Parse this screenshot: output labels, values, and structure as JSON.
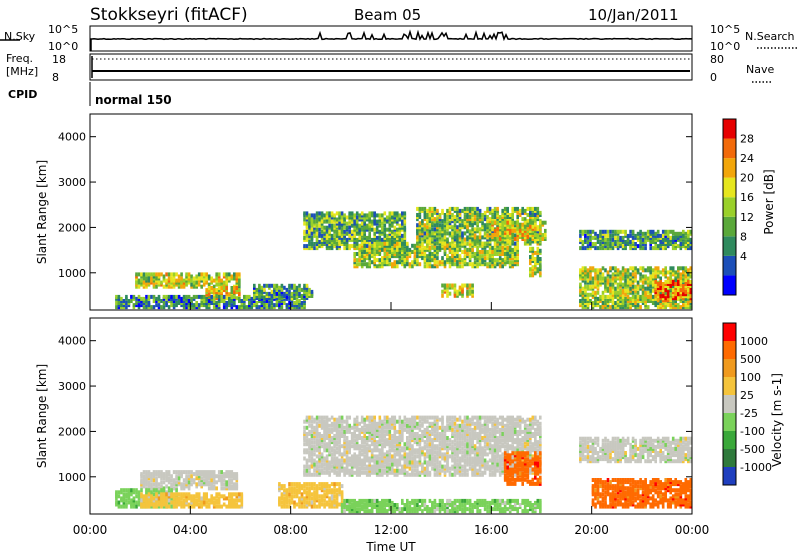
{
  "header": {
    "title": "Stokkseyri (fitACF)",
    "beam": "Beam 05",
    "date": "10/Jan/2011"
  },
  "summary_panels": {
    "nsky_label": "N.Sky",
    "nsearch_label": "N.Search",
    "freq_label_1": "Freq.",
    "freq_label_2": "[MHz]",
    "nave_label": "Nave",
    "cpid_label": "CPID",
    "cpid_value": "normal 150",
    "noise_ticks_left": [
      "10^5",
      "10^0"
    ],
    "noise_ticks_right": [
      "10^5",
      "10^0"
    ],
    "freq_ticks": [
      "18",
      "8"
    ],
    "nave_ticks": [
      "80",
      "0"
    ]
  },
  "chart_data": [
    {
      "type": "heatmap",
      "name": "power-panel",
      "ylabel": "Slant Range [km]",
      "xlabel": "Time UT",
      "xlim": [
        0,
        24
      ],
      "ylim": [
        180,
        4500
      ],
      "x_ticks": [
        "00:00",
        "04:00",
        "08:00",
        "12:00",
        "16:00",
        "20:00",
        "00:00"
      ],
      "y_ticks": [
        1000,
        2000,
        3000,
        4000
      ],
      "colorbar": {
        "label": "Power [dB]",
        "ticks": [
          "28",
          "24",
          "20",
          "16",
          "12",
          "8",
          "4"
        ],
        "colors": [
          "#0000ff",
          "#1c4fb8",
          "#2f8a5e",
          "#5aa83a",
          "#9ad02a",
          "#e6e61e",
          "#f2a60a",
          "#f26a0a",
          "#e60000"
        ],
        "range": [
          0,
          32
        ]
      },
      "regions": [
        {
          "t0": 1.8,
          "t1": 5.9,
          "r0": 650,
          "r1": 950,
          "level": 0.55
        },
        {
          "t0": 4.6,
          "t1": 5.9,
          "r0": 350,
          "r1": 650,
          "level": 0.65
        },
        {
          "t0": 1.0,
          "t1": 8.5,
          "r0": 200,
          "r1": 450,
          "level": 0.3
        },
        {
          "t0": 6.5,
          "t1": 8.8,
          "r0": 400,
          "r1": 700,
          "level": 0.35
        },
        {
          "t0": 8.5,
          "t1": 12.5,
          "r0": 1500,
          "r1": 2300,
          "level": 0.4
        },
        {
          "t0": 10.5,
          "t1": 17.0,
          "r0": 1100,
          "r1": 1600,
          "level": 0.5
        },
        {
          "t0": 13.0,
          "t1": 18.0,
          "r0": 1600,
          "r1": 2400,
          "level": 0.45
        },
        {
          "t0": 16.0,
          "t1": 18.2,
          "r0": 1700,
          "r1": 2100,
          "level": 0.6
        },
        {
          "t0": 14.0,
          "t1": 15.2,
          "r0": 450,
          "r1": 700,
          "level": 0.6
        },
        {
          "t0": 17.5,
          "t1": 18.0,
          "r0": 900,
          "r1": 1500,
          "level": 0.5
        },
        {
          "t0": 19.5,
          "t1": 24.0,
          "r0": 1500,
          "r1": 1900,
          "level": 0.35
        },
        {
          "t0": 19.5,
          "t1": 24.0,
          "r0": 200,
          "r1": 1100,
          "level": 0.5
        },
        {
          "t0": 22.5,
          "t1": 24.0,
          "r0": 350,
          "r1": 800,
          "level": 0.8
        }
      ]
    },
    {
      "type": "heatmap",
      "name": "velocity-panel",
      "ylabel": "Slant Range [km]",
      "xlabel": "Time UT",
      "xlim": [
        0,
        24
      ],
      "ylim": [
        180,
        4500
      ],
      "x_ticks": [
        "00:00",
        "04:00",
        "08:00",
        "12:00",
        "16:00",
        "20:00",
        "00:00"
      ],
      "y_ticks": [
        1000,
        2000,
        3000,
        4000
      ],
      "colorbar": {
        "label": "Velocity [m s-1]",
        "ticks": [
          "1000",
          "500",
          "100",
          "25",
          "-25",
          "-100",
          "-500",
          "-1000"
        ],
        "colors": [
          "#1f3fbf",
          "#2f7a3c",
          "#3aa83a",
          "#7ad25a",
          "#c8c8c0",
          "#f5c43c",
          "#f09a1e",
          "#ff6a00",
          "#ff0000"
        ]
      },
      "regions": [
        {
          "t0": 2.0,
          "t1": 5.8,
          "r0": 700,
          "r1": 1100,
          "cls": 4
        },
        {
          "t0": 1.0,
          "t1": 3.5,
          "r0": 300,
          "r1": 700,
          "cls": 3
        },
        {
          "t0": 2.0,
          "t1": 6.0,
          "r0": 300,
          "r1": 600,
          "cls": 5
        },
        {
          "t0": 7.5,
          "t1": 10.0,
          "r0": 300,
          "r1": 800,
          "cls": 5
        },
        {
          "t0": 8.5,
          "t1": 18.0,
          "r0": 1000,
          "r1": 2300,
          "cls": 4
        },
        {
          "t0": 16.5,
          "t1": 18.0,
          "r0": 800,
          "r1": 1500,
          "cls": 7
        },
        {
          "t0": 19.5,
          "t1": 24.0,
          "r0": 1300,
          "r1": 1800,
          "cls": 4
        },
        {
          "t0": 20.0,
          "t1": 24.0,
          "r0": 300,
          "r1": 900,
          "cls": 7
        },
        {
          "t0": 10.0,
          "t1": 18.0,
          "r0": 200,
          "r1": 450,
          "cls": 3
        }
      ]
    }
  ]
}
